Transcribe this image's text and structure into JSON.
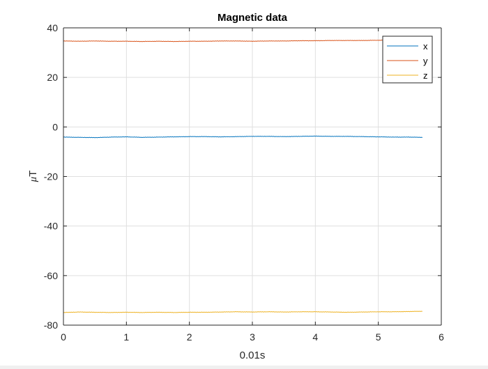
{
  "chart_data": {
    "type": "line",
    "title": "Magnetic data",
    "xlabel": "0.01s",
    "ylabel_prefix": "μ",
    "ylabel_unit": "T",
    "xlim": [
      0,
      6
    ],
    "ylim": [
      -80,
      40
    ],
    "xticks": [
      0,
      1,
      2,
      3,
      4,
      5,
      6
    ],
    "yticks": [
      40,
      20,
      0,
      -20,
      -40,
      -60,
      -80
    ],
    "grid": true,
    "legend_position": "top-right",
    "series": [
      {
        "name": "x",
        "color": "#0072BD",
        "x": [
          0.0,
          0.25,
          0.5,
          0.75,
          1.0,
          1.25,
          1.5,
          1.75,
          2.0,
          2.25,
          2.5,
          2.75,
          3.0,
          3.25,
          3.5,
          3.75,
          4.0,
          4.25,
          4.5,
          4.75,
          5.0,
          5.25,
          5.5,
          5.7
        ],
        "y": [
          -4.1,
          -4.2,
          -4.3,
          -4.1,
          -4.0,
          -4.2,
          -4.1,
          -4.0,
          -3.9,
          -3.9,
          -4.0,
          -3.9,
          -3.8,
          -3.8,
          -3.9,
          -3.8,
          -3.7,
          -3.8,
          -3.8,
          -3.9,
          -4.0,
          -4.1,
          -4.1,
          -4.2
        ]
      },
      {
        "name": "y",
        "color": "#D95319",
        "x": [
          0.0,
          0.25,
          0.5,
          0.75,
          1.0,
          1.25,
          1.5,
          1.75,
          2.0,
          2.25,
          2.5,
          2.75,
          3.0,
          3.25,
          3.5,
          3.75,
          4.0,
          4.25,
          4.5,
          4.75,
          5.0,
          5.25,
          5.5,
          5.7
        ],
        "y": [
          34.7,
          34.6,
          34.7,
          34.6,
          34.6,
          34.5,
          34.6,
          34.5,
          34.6,
          34.6,
          34.7,
          34.7,
          34.6,
          34.7,
          34.7,
          34.8,
          34.8,
          34.9,
          34.9,
          34.9,
          35.0,
          35.0,
          35.1,
          35.1
        ]
      },
      {
        "name": "z",
        "color": "#EDB120",
        "x": [
          0.0,
          0.25,
          0.5,
          0.75,
          1.0,
          1.25,
          1.5,
          1.75,
          2.0,
          2.25,
          2.5,
          2.75,
          3.0,
          3.25,
          3.5,
          3.75,
          4.0,
          4.25,
          4.5,
          4.75,
          5.0,
          5.25,
          5.5,
          5.7
        ],
        "y": [
          -74.9,
          -74.7,
          -74.8,
          -74.9,
          -74.8,
          -74.9,
          -74.8,
          -74.9,
          -74.8,
          -74.8,
          -74.7,
          -74.6,
          -74.7,
          -74.6,
          -74.7,
          -74.6,
          -74.6,
          -74.7,
          -74.8,
          -74.7,
          -74.6,
          -74.6,
          -74.5,
          -74.4
        ]
      }
    ]
  }
}
